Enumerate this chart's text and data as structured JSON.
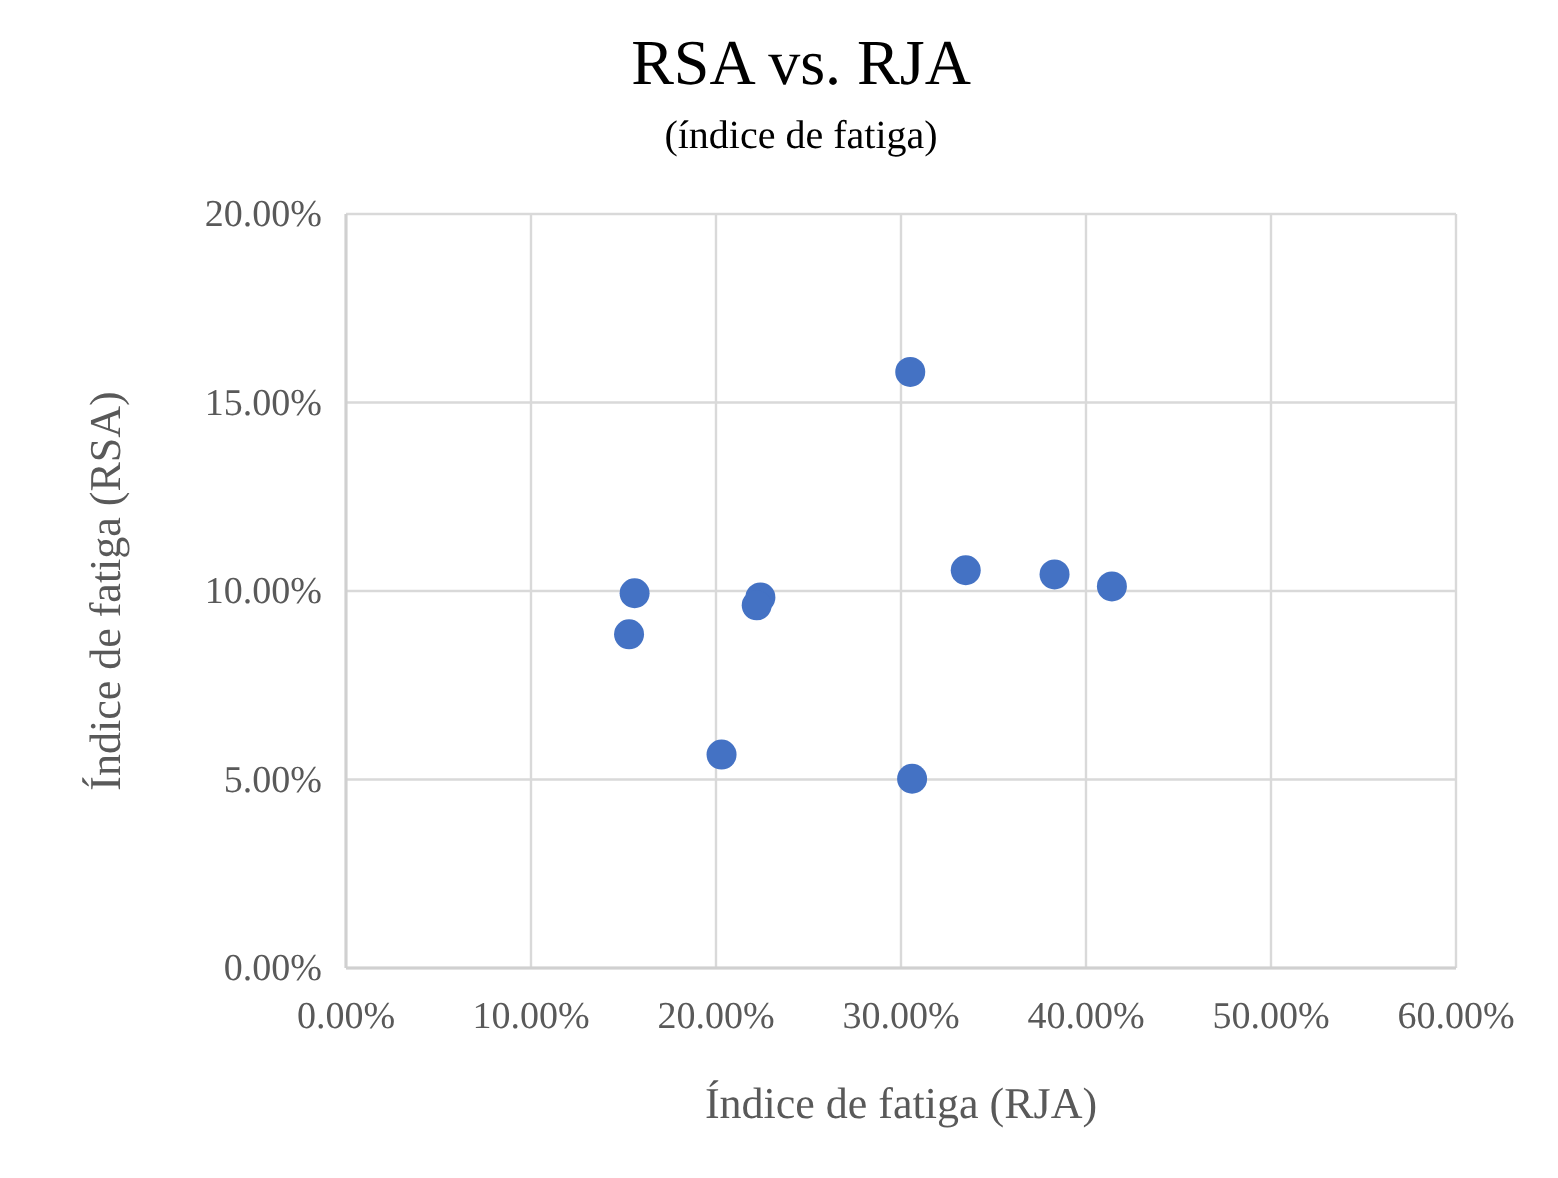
{
  "chart_data": {
    "type": "scatter",
    "title": "RSA vs. RJA",
    "subtitle": "(índice de fatiga)",
    "xlabel": "Índice de fatiga (RJA)",
    "ylabel": "Índice de fatiga (RSA)",
    "x": [
      15.6,
      15.3,
      20.3,
      22.4,
      22.2,
      30.5,
      30.6,
      33.5,
      38.3,
      41.4
    ],
    "series": [
      {
        "color": "#4472c4",
        "values": [
          9.94,
          8.85,
          5.66,
          9.83,
          9.62,
          15.81,
          5.02,
          10.55,
          10.44,
          10.12
        ]
      }
    ],
    "xlim": [
      0,
      60
    ],
    "ylim": [
      0,
      20
    ],
    "xticks": [
      {
        "value": 0,
        "label": "0.00%"
      },
      {
        "value": 10,
        "label": "10.00%"
      },
      {
        "value": 20,
        "label": "20.00%"
      },
      {
        "value": 30,
        "label": "30.00%"
      },
      {
        "value": 40,
        "label": "40.00%"
      },
      {
        "value": 50,
        "label": "50.00%"
      },
      {
        "value": 60,
        "label": "60.00%"
      }
    ],
    "yticks": [
      {
        "value": 0,
        "label": "0.00%"
      },
      {
        "value": 5,
        "label": "5.00%"
      },
      {
        "value": 10,
        "label": "10.00%"
      },
      {
        "value": 15,
        "label": "15.00%"
      },
      {
        "value": 20,
        "label": "20.00%"
      }
    ],
    "grid": true,
    "marker": "circle"
  }
}
